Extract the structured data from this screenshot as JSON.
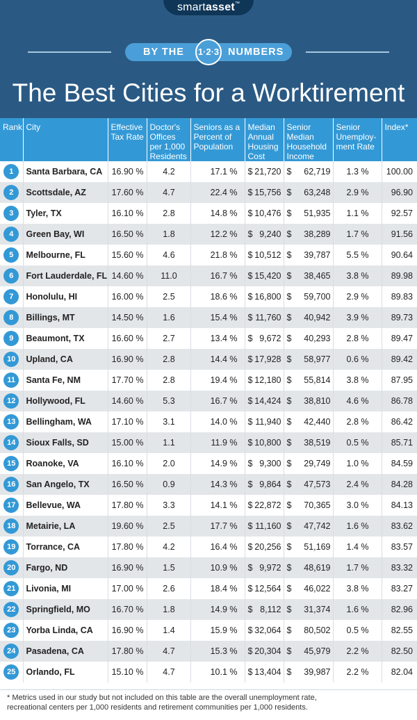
{
  "brand": {
    "name_plain": "smart",
    "name_bold": "asset",
    "tm": "™"
  },
  "badge": {
    "left": "BY THE",
    "numbers": "1·2·3",
    "right": "NUMBERS"
  },
  "title": "The Best Cities for a Worktirement",
  "colors": {
    "header_bg": "#2a5a84",
    "accent": "#3399d6",
    "stripe": "#e3e6e9"
  },
  "table": {
    "headers": [
      "Rank",
      "City",
      "Effective Tax Rate",
      "Doctor's Offices per 1,000 Residents",
      "Seniors as a Percent of Population",
      "Median Annual Housing Cost",
      "Senior Median Household Income",
      "Senior Unemploy-ment Rate",
      "Index*"
    ],
    "rows": [
      [
        "1",
        "Santa Barbara, CA",
        "16.90 %",
        "4.2",
        "17.1 %",
        "$",
        "21,720",
        "$",
        "62,719",
        "1.3 %",
        "100.00"
      ],
      [
        "2",
        "Scottsdale, AZ",
        "17.60 %",
        "4.7",
        "22.4 %",
        "$",
        "15,756",
        "$",
        "63,248",
        "2.9 %",
        "96.90"
      ],
      [
        "3",
        "Tyler, TX",
        "16.10 %",
        "2.8",
        "14.8 %",
        "$",
        "10,476",
        "$",
        "51,935",
        "1.1 %",
        "92.57"
      ],
      [
        "4",
        "Green Bay, WI",
        "16.50 %",
        "1.8",
        "12.2 %",
        "$",
        "9,240",
        "$",
        "38,289",
        "1.7 %",
        "91.56"
      ],
      [
        "5",
        "Melbourne, FL",
        "15.60 %",
        "4.6",
        "21.8 %",
        "$",
        "10,512",
        "$",
        "39,787",
        "5.5 %",
        "90.64"
      ],
      [
        "6",
        "Fort Lauderdale, FL",
        "14.60 %",
        "11.0",
        "16.7 %",
        "$",
        "15,420",
        "$",
        "38,465",
        "3.8 %",
        "89.98"
      ],
      [
        "7",
        "Honolulu, HI",
        "16.00 %",
        "2.5",
        "18.6 %",
        "$",
        "16,800",
        "$",
        "59,700",
        "2.9 %",
        "89.83"
      ],
      [
        "8",
        "Billings, MT",
        "14.50 %",
        "1.6",
        "15.4 %",
        "$",
        "11,760",
        "$",
        "40,942",
        "3.9 %",
        "89.73"
      ],
      [
        "9",
        "Beaumont, TX",
        "16.60 %",
        "2.7",
        "13.4 %",
        "$",
        "9,672",
        "$",
        "40,293",
        "2.8 %",
        "89.47"
      ],
      [
        "10",
        "Upland, CA",
        "16.90 %",
        "2.8",
        "14.4 %",
        "$",
        "17,928",
        "$",
        "58,977",
        "0.6 %",
        "89.42"
      ],
      [
        "11",
        "Santa Fe, NM",
        "17.70 %",
        "2.8",
        "19.4 %",
        "$",
        "12,180",
        "$",
        "55,814",
        "3.8 %",
        "87.95"
      ],
      [
        "12",
        "Hollywood, FL",
        "14.60 %",
        "5.3",
        "16.7 %",
        "$",
        "14,424",
        "$",
        "38,810",
        "4.6 %",
        "86.78"
      ],
      [
        "13",
        "Bellingham, WA",
        "17.10 %",
        "3.1",
        "14.0 %",
        "$",
        "11,940",
        "$",
        "42,440",
        "2.8 %",
        "86.42"
      ],
      [
        "14",
        "Sioux Falls, SD",
        "15.00 %",
        "1.1",
        "11.9 %",
        "$",
        "10,800",
        "$",
        "38,519",
        "0.5 %",
        "85.71"
      ],
      [
        "15",
        "Roanoke, VA",
        "16.10 %",
        "2.0",
        "14.9 %",
        "$",
        "9,300",
        "$",
        "29,749",
        "1.0 %",
        "84.59"
      ],
      [
        "16",
        "San Angelo, TX",
        "16.50 %",
        "0.9",
        "14.3 %",
        "$",
        "9,864",
        "$",
        "47,573",
        "2.4 %",
        "84.28"
      ],
      [
        "17",
        "Bellevue, WA",
        "17.80 %",
        "3.3",
        "14.1 %",
        "$",
        "22,872",
        "$",
        "70,365",
        "3.0 %",
        "84.13"
      ],
      [
        "18",
        "Metairie, LA",
        "19.60 %",
        "2.5",
        "17.7 %",
        "$",
        "11,160",
        "$",
        "47,742",
        "1.6 %",
        "83.62"
      ],
      [
        "19",
        "Torrance, CA",
        "17.80 %",
        "4.2",
        "16.4 %",
        "$",
        "20,256",
        "$",
        "51,169",
        "1.4 %",
        "83.57"
      ],
      [
        "20",
        "Fargo, ND",
        "16.90 %",
        "1.5",
        "10.9 %",
        "$",
        "9,972",
        "$",
        "48,619",
        "1.7 %",
        "83.32"
      ],
      [
        "21",
        "Livonia, MI",
        "17.00 %",
        "2.6",
        "18.4 %",
        "$",
        "12,564",
        "$",
        "46,022",
        "3.8 %",
        "83.27"
      ],
      [
        "22",
        "Springfield, MO",
        "16.70 %",
        "1.8",
        "14.9 %",
        "$",
        "8,112",
        "$",
        "31,374",
        "1.6 %",
        "82.96"
      ],
      [
        "23",
        "Yorba Linda, CA",
        "16.90 %",
        "1.4",
        "15.9 %",
        "$",
        "32,064",
        "$",
        "80,502",
        "0.5 %",
        "82.55"
      ],
      [
        "24",
        "Pasadena, CA",
        "17.80 %",
        "4.7",
        "15.3 %",
        "$",
        "20,304",
        "$",
        "45,979",
        "2.2 %",
        "82.50"
      ],
      [
        "25",
        "Orlando, FL",
        "15.10 %",
        "4.7",
        "10.1 %",
        "$",
        "13,404",
        "$",
        "39,987",
        "2.2 %",
        "82.04"
      ]
    ]
  },
  "footnote": "* Metrics used in our study but not included on this table are the overall unemployment rate, recreational centers per 1,000 residents and retirement communities per 1,000 residents.",
  "chart_data": {
    "type": "table",
    "title": "The Best Cities for a Worktirement",
    "columns": [
      "Rank",
      "City",
      "Effective Tax Rate",
      "Doctor's Offices per 1,000 Residents",
      "Seniors as a Percent of Population",
      "Median Annual Housing Cost",
      "Senior Median Household Income",
      "Senior Unemploy-ment Rate",
      "Index*"
    ]
  }
}
